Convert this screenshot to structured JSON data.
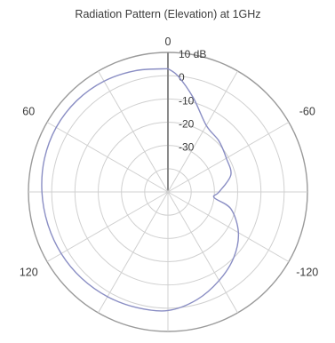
{
  "chart_data": {
    "type": "polar-line",
    "title": "Radiation Pattern (Elevation) at 1GHz",
    "radial_axis": {
      "unit": "dB",
      "range": [
        -50,
        10
      ],
      "tick_values": [
        10,
        0,
        -10,
        -20,
        -30
      ],
      "tick_labels": [
        "10 dB",
        "0",
        "-10",
        "-20",
        "-30"
      ],
      "grid": true
    },
    "angular_axis": {
      "zero_direction": "top",
      "direction": "counterclockwise",
      "grid_step_deg": 30,
      "labels": [
        {
          "angle": 0,
          "text": "0"
        },
        {
          "angle": 60,
          "text": "60"
        },
        {
          "angle": -60,
          "text": "-60"
        },
        {
          "angle": 120,
          "text": "120"
        },
        {
          "angle": -120,
          "text": "-120"
        }
      ]
    },
    "series": [
      {
        "color": "#8a8ec4",
        "points": [
          {
            "theta": 0,
            "r": 3
          },
          {
            "theta": 15,
            "r": 4
          },
          {
            "theta": 30,
            "r": 5
          },
          {
            "theta": 45,
            "r": 5.5
          },
          {
            "theta": 60,
            "r": 5.5
          },
          {
            "theta": 75,
            "r": 5
          },
          {
            "theta": 90,
            "r": 4.2
          },
          {
            "theta": 105,
            "r": 3.5
          },
          {
            "theta": 120,
            "r": 3
          },
          {
            "theta": 135,
            "r": 2.5
          },
          {
            "theta": 150,
            "r": 2
          },
          {
            "theta": 165,
            "r": 1.5
          },
          {
            "theta": 180,
            "r": 1
          },
          {
            "theta": -165,
            "r": -2
          },
          {
            "theta": -150,
            "r": -6
          },
          {
            "theta": -135,
            "r": -10
          },
          {
            "theta": -120,
            "r": -15
          },
          {
            "theta": -105,
            "r": -22
          },
          {
            "theta": -97,
            "r": -30
          },
          {
            "theta": -90,
            "r": -28
          },
          {
            "theta": -75,
            "r": -22
          },
          {
            "theta": -60,
            "r": -21
          },
          {
            "theta": -45,
            "r": -19
          },
          {
            "theta": -30,
            "r": -17
          },
          {
            "theta": -15,
            "r": -8
          },
          {
            "theta": -5,
            "r": 0
          },
          {
            "theta": 0,
            "r": 3
          }
        ]
      }
    ],
    "colors": {
      "grid": "#d0d0d0",
      "outer_ring": "#9a9a9a",
      "zero_axis": "#8a8a8a",
      "text": "#3a3a3a"
    }
  }
}
